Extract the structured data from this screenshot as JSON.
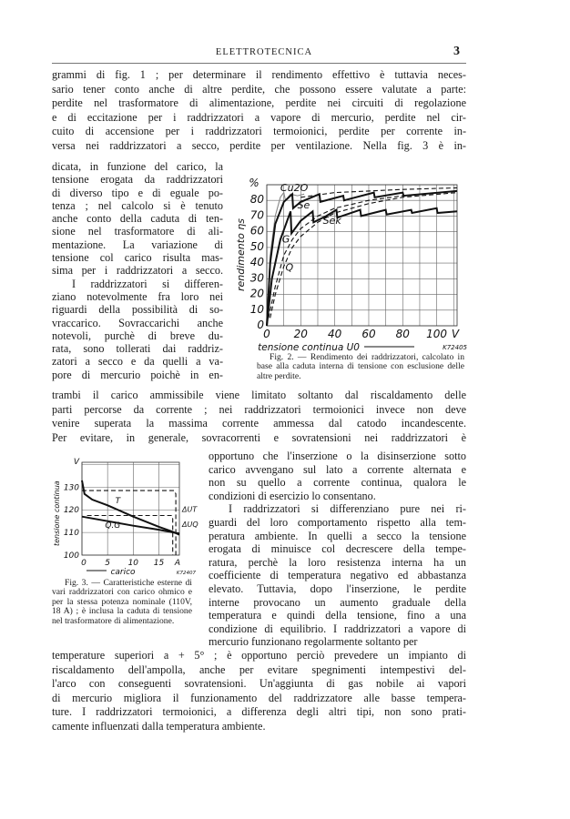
{
  "header": {
    "running_title": "ELETTROTECNICA",
    "page_number": "3"
  },
  "blocks": {
    "a": [
      "grammi di fig. 1 ; per determinare il rendimento effettivo è tuttavia neces-",
      "sario tener conto anche di altre perdite, che possono essere valutate a parte:",
      "perdite nel trasformatore di alimentazione, perdite nei circuiti di regolazione",
      "e di eccitazione per i raddrizzatori a vapore di mercurio, perdite nel cir-",
      "cuito di accensione per i raddrizzatori termoionici, perdite per corrente in-",
      "versa nei raddrizzatori a secco, perdite per ventilazione. Nella fig. 3 è in-"
    ],
    "b": [
      "dicata, in funzione del carico, la",
      "tensione erogata da raddrizzatori",
      "di diverso tipo e di eguale po-",
      "tenza ; nel calcolo si è tenuto",
      "anche conto della caduta di ten-",
      "sione nel trasformatore di ali-",
      "mentazione. La variazione di",
      "tensione col carico risulta mas-",
      "sima per i raddrizzatori a secco.",
      "I raddrizzatori si differen-",
      "ziano notevolmente fra loro nei",
      "riguardi della possibilità di so-",
      "vraccarico. Sovraccarichi anche",
      "notevoli, purchè di breve du-",
      "rata, sono tollerati dai raddriz-",
      "zatori a secco e da quelli a va-",
      "pore di mercurio poichè in en-"
    ],
    "c": [
      "trambi il carico ammissibile viene limitato soltanto dal riscaldamento delle",
      "parti percorse da corrente ; nei raddrizzatori termoionici invece non deve",
      "venire superata la massima corrente ammessa dal catodo incandescente.",
      "Per evitare, in generale, sovracorrenti e sovratensioni nei raddrizzatori è"
    ],
    "d": [
      "opportuno che l'inserzione o la disinserzione sotto",
      "carico avvengano sul lato a corrente alternata e",
      "non su quello a corrente continua, qualora le",
      "condizioni di esercizio lo consentano.",
      "I raddrizzatori si differenziano pure nei ri-",
      "guardi del loro comportamento rispetto alla tem-",
      "peratura ambiente. In quelli a secco la tensione",
      "erogata di minuisce col decrescere della tempe-",
      "ratura, perchè la loro resistenza interna ha un",
      "coefficiente di temperatura negativo ed abbastanza",
      "elevato. Tuttavia, dopo l'inserzione, le perdite",
      "interne provocano un aumento graduale della",
      "temperatura e quindi della tensione, fino a una",
      "condizione di equilibrio. I raddrizzatori a vapore di",
      "mercurio funzionano regolarmente soltanto per"
    ],
    "e": [
      "temperature superiori a + 5° ; è opportuno perciò prevedere un impianto di",
      "riscaldamento dell'ampolla, anche per evitare spegnimenti intempestivi del-",
      "l'arco con conseguenti sovratensioni. Un'aggiunta di gas nobile ai vapori",
      "di mercurio migliora il funzionamento del raddrizzatore alle basse tempera-",
      "ture. I raddrizzatori termoionici, a differenza degli altri tipi, non sono prati-",
      "camente influenzati dalla temperatura ambiente."
    ]
  },
  "figures": {
    "fig2": {
      "caption_label": "Fig. 2. —",
      "caption": "Rendimento dei raddrizzatori, calcolato in base alla caduta interna di tensione con esclusione delle altre perdite."
    },
    "fig3": {
      "caption_label": "Fig. 3. —",
      "caption": "Caratteristiche esterne di vari raddrizzatori con carico ohmico e per la stessa potenza nominale (110V, 18 A) ; è inclusa la caduta di tensione nel trasformatore di alimentazione."
    }
  },
  "chart_data": [
    {
      "type": "line",
      "xlabel": "tensione continua U0",
      "ylabel": "rendimento ηs",
      "x_unit": "V",
      "y_unit": "%",
      "plate_code": "K72405",
      "xlim": [
        0,
        112
      ],
      "ylim": [
        0,
        90
      ],
      "x_ticks": [
        "0",
        "20",
        "40",
        "60",
        "80",
        "100"
      ],
      "x_tick_values": [
        0,
        20,
        40,
        60,
        80,
        100
      ],
      "y_ticks": [
        "0",
        "10",
        "20",
        "30",
        "40",
        "50",
        "60",
        "70",
        "80"
      ],
      "y_tick_values": [
        0,
        10,
        20,
        30,
        40,
        50,
        60,
        70,
        80
      ],
      "grid": true,
      "series": [
        {
          "name": "Cu2O",
          "style": "solid-thin",
          "points": [
            [
              0,
              0
            ],
            [
              2,
              45
            ],
            [
              5,
              70
            ],
            [
              8,
              82
            ],
            [
              10,
              85
            ],
            [
              11,
              80
            ],
            [
              14,
              84
            ],
            [
              18,
              83
            ],
            [
              22,
              84
            ]
          ]
        },
        {
          "name": "Se",
          "style": "solid",
          "points": [
            [
              0,
              0
            ],
            [
              2,
              40
            ],
            [
              5,
              65
            ],
            [
              10,
              79
            ],
            [
              15,
              84
            ],
            [
              15.5,
              75
            ],
            [
              20,
              79
            ],
            [
              31,
              84
            ],
            [
              31.5,
              79
            ],
            [
              45,
              83
            ],
            [
              45.5,
              80
            ],
            [
              63,
              85
            ],
            [
              63.5,
              82
            ],
            [
              80,
              85
            ],
            [
              80.5,
              83
            ],
            [
              112,
              86
            ]
          ]
        },
        {
          "name": "Sek",
          "style": "solid",
          "points": [
            [
              0,
              0
            ],
            [
              3,
              30
            ],
            [
              8,
              55
            ],
            [
              14,
              73
            ],
            [
              14.5,
              59
            ],
            [
              20,
              67
            ],
            [
              27,
              73
            ],
            [
              27.5,
              66
            ],
            [
              35,
              70
            ],
            [
              41,
              74
            ],
            [
              41.5,
              69
            ],
            [
              55,
              74
            ],
            [
              55.5,
              70
            ],
            [
              70,
              74
            ],
            [
              70.5,
              71
            ],
            [
              85,
              74
            ],
            [
              85.5,
              72
            ],
            [
              100,
              75
            ],
            [
              100.5,
              72
            ],
            [
              112,
              73
            ]
          ]
        },
        {
          "name": "G",
          "style": "dashed",
          "points": [
            [
              1,
              5
            ],
            [
              5,
              25
            ],
            [
              10,
              45
            ],
            [
              15,
              55
            ],
            [
              20,
              62
            ],
            [
              30,
              70
            ],
            [
              40,
              75
            ],
            [
              60,
              80
            ],
            [
              80,
              83
            ],
            [
              112,
              86
            ]
          ]
        },
        {
          "name": "Q",
          "style": "dashed",
          "points": [
            [
              2,
              5
            ],
            [
              5,
              20
            ],
            [
              10,
              38
            ],
            [
              15,
              50
            ],
            [
              20,
              57
            ],
            [
              30,
              66
            ],
            [
              40,
              72
            ],
            [
              60,
              78
            ],
            [
              80,
              82
            ],
            [
              112,
              85
            ]
          ]
        },
        {
          "name": "",
          "style": "dashed",
          "points": [
            [
              20,
              82
            ],
            [
              40,
              85
            ],
            [
              60,
              86
            ],
            [
              80,
              87
            ],
            [
              112,
              88
            ]
          ]
        }
      ]
    },
    {
      "type": "line",
      "xlabel": "carico",
      "ylabel": "tensione continua",
      "x_unit": "A",
      "y_unit": "V",
      "plate_code": "K72407",
      "xlim": [
        0,
        19
      ],
      "ylim": [
        100,
        141
      ],
      "x_ticks": [
        "0",
        "5",
        "10",
        "15"
      ],
      "x_tick_values": [
        0,
        5,
        10,
        15
      ],
      "y_ticks": [
        "100",
        "110",
        "120",
        "130"
      ],
      "y_tick_values": [
        100,
        110,
        120,
        130
      ],
      "grid": true,
      "series": [
        {
          "name": "T",
          "style": "solid",
          "points": [
            [
              0,
              133
            ],
            [
              0.5,
              127
            ],
            [
              2,
              124.5
            ],
            [
              5,
              122
            ],
            [
              10,
              117
            ],
            [
              15,
              112.5
            ],
            [
              17.5,
              110.5
            ],
            [
              19,
              109
            ]
          ]
        },
        {
          "name": "Q.G",
          "style": "solid",
          "points": [
            [
              0,
              117
            ],
            [
              5,
              115
            ],
            [
              10,
              113
            ],
            [
              15,
              111.2
            ],
            [
              19,
              109.5
            ]
          ]
        },
        {
          "name": "",
          "style": "dashed",
          "points": [
            [
              0,
              128.5
            ],
            [
              18,
              128.5
            ],
            [
              18.3,
              127
            ],
            [
              18.3,
              100
            ]
          ]
        },
        {
          "name": "",
          "style": "dashed",
          "points": [
            [
              1,
              117.5
            ],
            [
              17.5,
              117.5
            ],
            [
              17.7,
              116
            ],
            [
              17.7,
              100
            ]
          ]
        }
      ],
      "annotations": [
        "ΔUT",
        "ΔUQ"
      ]
    }
  ]
}
